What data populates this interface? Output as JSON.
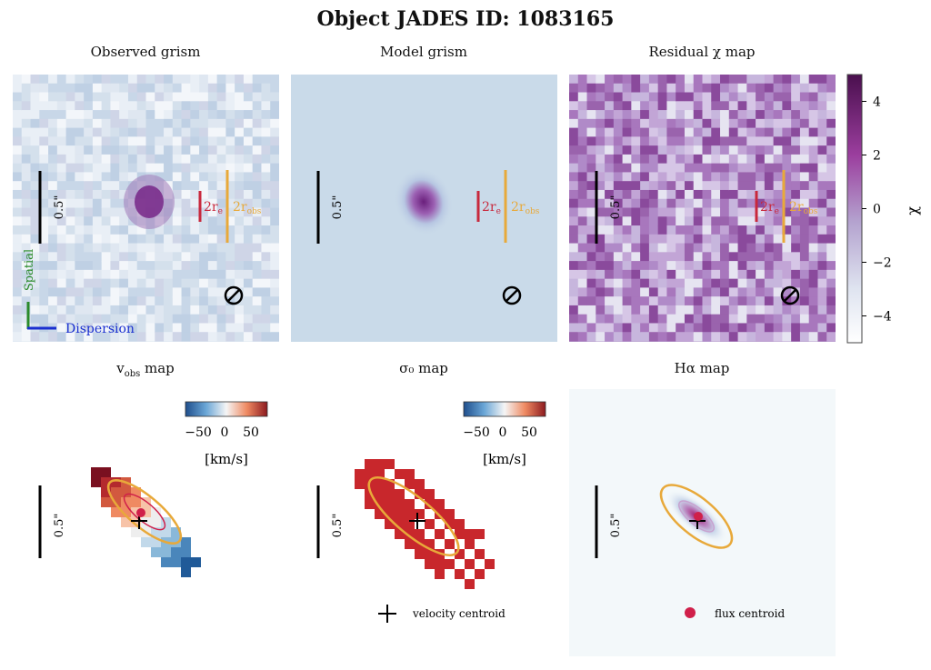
{
  "title": "Object JADES ID: 1083165",
  "panels": {
    "observed": "Observed grism",
    "model": "Model grism",
    "residual": "Residual χ map",
    "vobs": "v_obs map",
    "sigma": "σ₀ map",
    "halpha": "Hα map"
  },
  "labels": {
    "scale": "0.5\"",
    "two_re": "2r",
    "re_sub": "e",
    "two_robs": "2r",
    "robs_sub": "obs",
    "spatial": "Spatial",
    "dispersion": "Dispersion",
    "colorbar_unit": "[km/s]",
    "chi_axis": "χ"
  },
  "legend": {
    "velocity_centroid": "velocity centroid",
    "flux_centroid": "flux centroid"
  },
  "colors": {
    "re_color": "#c8283c",
    "robs_color": "#e8a93a",
    "spatial_color": "#2a8a2a",
    "dispersion_color": "#1a2fd0",
    "flux_centroid": "#d0204a"
  },
  "chart_data": [
    {
      "type": "heatmap",
      "title": "Residual χ map",
      "colorbar": {
        "label": "χ",
        "ticks": [
          4,
          2,
          0,
          -2,
          -4
        ],
        "range": [
          -5,
          5
        ]
      }
    },
    {
      "type": "heatmap",
      "title": "v_obs map",
      "colorbar": {
        "label": "[km/s]",
        "ticks": [
          -50,
          0,
          50
        ],
        "tick_labels": [
          "−50",
          "0",
          "50"
        ]
      }
    },
    {
      "type": "heatmap",
      "title": "σ₀ map",
      "colorbar": {
        "label": "[km/s]",
        "ticks": [
          -50,
          0,
          50
        ],
        "tick_labels": [
          "−50",
          "0",
          "50"
        ]
      }
    }
  ],
  "chi_ticks": [
    "4",
    "2",
    "0",
    "−2",
    "−4"
  ],
  "vel_ticks": [
    "−50",
    "0",
    "50"
  ]
}
